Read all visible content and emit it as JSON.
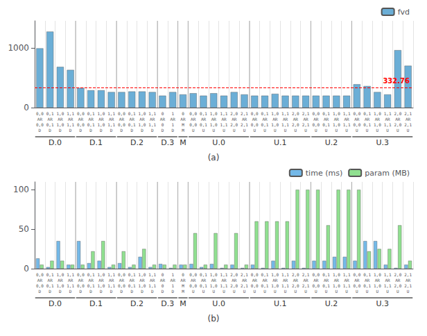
{
  "chart_data": [
    {
      "type": "bar",
      "title": "(a)",
      "categories": [
        "0,0\nAR\n0,0\nD",
        "0,1\nAR\n0,1\nD",
        "1,0\nAR\n1,0\nD",
        "1,1\nAR\n1,1\nD",
        "0,0\nAR\n0,0\nD",
        "0,1\nAR\n0,1\nD",
        "1,0\nAR\n1,0\nD",
        "1,1\nAR\n1,1\nD",
        "0,0\nAR\n0,0\nD",
        "0,1\nAR\n0,1\nD",
        "1,0\nAR\n1,0\nD",
        "1,1\nAR\n1,1\nD",
        "0\nAR\n0\nD",
        "1\nAR\n1\nD",
        "0\nAR\nM\nM",
        "0,0\nAR\n0,0\nU",
        "0,1\nAR\n0,1\nU",
        "1,0\nAR\n1,0\nU",
        "1,1\nAR\n1,1\nU",
        "2,0\nAR\n2,0\nU",
        "2,1\nAR\n2,1\nU",
        "0,0\nAR\n0,0\nU",
        "0,1\nAR\n0,1\nU",
        "1,0\nAR\n1,0\nU",
        "1,1\nAR\n1,1\nU",
        "2,0\nAR\n2,0\nU",
        "2,1\nAR\n2,1\nU",
        "0,0\nAR\n0,0\nU",
        "0,1\nAR\n0,1\nU",
        "1,0\nAR\n1,0\nU",
        "1,1\nAR\n1,1\nU",
        "0,0\nAR\n0,0\nU",
        "0,1\nAR\n0,1\nU",
        "1,0\nAR\n1,0\nU",
        "1,1\nAR\n1,1\nU",
        "2,0\nAR\n2,0\nU",
        "2,1\nAR\n2,1\nU"
      ],
      "category_groups": [
        "D.0",
        "D.0",
        "D.0",
        "D.0",
        "D.1",
        "D.1",
        "D.1",
        "D.1",
        "D.2",
        "D.2",
        "D.2",
        "D.2",
        "D.3",
        "D.3",
        "M",
        "U.0",
        "U.0",
        "U.0",
        "U.0",
        "U.0",
        "U.0",
        "U.1",
        "U.1",
        "U.1",
        "U.1",
        "U.1",
        "U.1",
        "U.2",
        "U.2",
        "U.2",
        "U.2",
        "U.3",
        "U.3",
        "U.3",
        "U.3",
        "U.3",
        "U.3"
      ],
      "series": [
        {
          "name": "fvd",
          "color": "#6baed6",
          "values": [
            990,
            1270,
            680,
            630,
            330,
            290,
            290,
            260,
            260,
            270,
            270,
            260,
            200,
            260,
            220,
            240,
            200,
            240,
            200,
            260,
            220,
            200,
            200,
            230,
            200,
            200,
            200,
            200,
            200,
            200,
            200,
            390,
            360,
            260,
            220,
            960,
            700
          ]
        }
      ],
      "ylim": [
        0,
        1450
      ],
      "yticks": [
        0,
        1000
      ],
      "grid": "x",
      "legend": "upper right",
      "reference_line": {
        "value": 332.76,
        "label": "332.76",
        "color": "red",
        "line_style": "dashed"
      }
    },
    {
      "type": "bar",
      "title": "(b)",
      "categories": [
        "0,0\nAR\n0,0\nD",
        "0,1\nAR\n0,1\nD",
        "1,0\nAR\n1,0\nD",
        "1,1\nAR\n1,1\nD",
        "0,0\nAR\n0,0\nD",
        "0,1\nAR\n0,1\nD",
        "1,0\nAR\n1,0\nD",
        "1,1\nAR\n1,1\nD",
        "0,0\nAR\n0,0\nD",
        "0,1\nAR\n0,1\nD",
        "1,0\nAR\n1,0\nD",
        "1,1\nAR\n1,1\nD",
        "0\nAR\n0\nD",
        "1\nAR\n1\nD",
        "0\nAR\nM\nM",
        "0,0\nAR\n0,0\nU",
        "0,1\nAR\n0,1\nU",
        "1,0\nAR\n1,0\nU",
        "1,1\nAR\n1,1\nU",
        "2,0\nAR\n2,0\nU",
        "2,1\nAR\n2,1\nU",
        "0,0\nAR\n0,0\nU",
        "0,1\nAR\n0,1\nU",
        "1,0\nAR\n1,0\nU",
        "1,1\nAR\n1,1\nU",
        "2,0\nAR\n2,0\nU",
        "2,1\nAR\n2,1\nU",
        "0,0\nAR\n0,0\nU",
        "0,1\nAR\n0,1\nU",
        "1,0\nAR\n1,0\nU",
        "1,1\nAR\n1,1\nU",
        "0,0\nAR\n0,0\nU",
        "0,1\nAR\n0,1\nU",
        "1,0\nAR\n1,0\nU",
        "1,1\nAR\n1,1\nU",
        "2,0\nAR\n2,0\nU",
        "2,1\nAR\n2,1\nU"
      ],
      "category_groups": [
        "D.0",
        "D.0",
        "D.0",
        "D.0",
        "D.1",
        "D.1",
        "D.1",
        "D.1",
        "D.2",
        "D.2",
        "D.2",
        "D.2",
        "D.3",
        "D.3",
        "M",
        "U.0",
        "U.0",
        "U.0",
        "U.0",
        "U.0",
        "U.0",
        "U.1",
        "U.1",
        "U.1",
        "U.1",
        "U.1",
        "U.1",
        "U.2",
        "U.2",
        "U.2",
        "U.2",
        "U.3",
        "U.3",
        "U.3",
        "U.3",
        "U.3",
        "U.3"
      ],
      "series": [
        {
          "name": "time (ms)",
          "color": "#74b9e8",
          "values": [
            13,
            2,
            35,
            5,
            35,
            7,
            10,
            2,
            7,
            2,
            15,
            2,
            6,
            1,
            5,
            6,
            2,
            6,
            1,
            5,
            1,
            5,
            1,
            10,
            1,
            10,
            1,
            10,
            10,
            15,
            15,
            10,
            35,
            35,
            5,
            1,
            5
          ]
        },
        {
          "name": "param (MB)",
          "color": "#90e090",
          "values": [
            5,
            10,
            10,
            5,
            5,
            22,
            35,
            5,
            22,
            5,
            25,
            5,
            5,
            5,
            5,
            45,
            5,
            45,
            5,
            45,
            5,
            60,
            60,
            60,
            60,
            100,
            100,
            100,
            55,
            100,
            100,
            100,
            22,
            25,
            25,
            55,
            10
          ]
        }
      ],
      "ylim": [
        0,
        110
      ],
      "yticks": [
        0,
        50,
        100
      ],
      "grid": "x",
      "legend": "upper right"
    }
  ]
}
